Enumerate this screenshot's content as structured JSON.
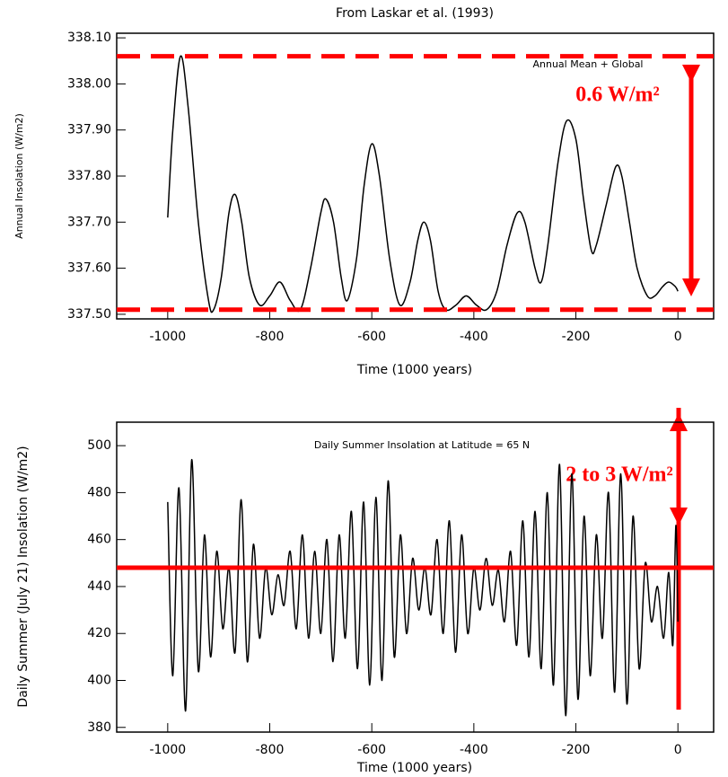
{
  "chart_data": [
    {
      "type": "line",
      "title": "From Laskar et al. (1993)",
      "x_label": "Time (1000 years)",
      "y_label": "Annual Insolation (W/m2)",
      "annotations": [
        "Annual Mean + Global",
        "0.6 W/m²"
      ],
      "x": [
        -1000,
        -990,
        -975,
        -960,
        -940,
        -920,
        -910,
        -895,
        -880,
        -868,
        -855,
        -840,
        -820,
        -800,
        -780,
        -760,
        -740,
        -720,
        -700,
        -690,
        -675,
        -660,
        -648,
        -630,
        -615,
        -600,
        -585,
        -565,
        -545,
        -525,
        -510,
        -498,
        -485,
        -470,
        -455,
        -435,
        -415,
        -395,
        -375,
        -355,
        -335,
        -315,
        -300,
        -280,
        -268,
        -255,
        -235,
        -218,
        -200,
        -185,
        -170,
        -160,
        -140,
        -122,
        -110,
        -95,
        -80,
        -60,
        -45,
        -30,
        -18,
        -5,
        0
      ],
      "series": [
        {
          "color": "#000000",
          "values": [
            337.71,
            337.9,
            338.06,
            337.95,
            337.7,
            337.53,
            337.51,
            337.58,
            337.72,
            337.76,
            337.7,
            337.58,
            337.52,
            337.54,
            337.57,
            337.53,
            337.51,
            337.6,
            337.72,
            337.75,
            337.7,
            337.58,
            337.53,
            337.62,
            337.78,
            337.87,
            337.8,
            337.62,
            337.52,
            337.57,
            337.66,
            337.7,
            337.66,
            337.55,
            337.51,
            337.52,
            337.54,
            337.52,
            337.51,
            337.55,
            337.65,
            337.72,
            337.7,
            337.6,
            337.57,
            337.65,
            337.83,
            337.92,
            337.88,
            337.75,
            337.64,
            337.65,
            337.74,
            337.82,
            337.8,
            337.7,
            337.6,
            337.54,
            337.54,
            337.56,
            337.57,
            337.56,
            337.55
          ]
        }
      ],
      "reference_lines": [
        {
          "value": 338.06,
          "style": "dashed",
          "color": "#ff0000"
        },
        {
          "value": 337.51,
          "style": "dashed",
          "color": "#ff0000"
        }
      ],
      "xlim": [
        -1100,
        70
      ],
      "xticks": [
        -1000,
        -800,
        -600,
        -400,
        -200,
        0
      ],
      "ylim": [
        337.49,
        338.11
      ],
      "yticks": [
        {
          "value": 337.5,
          "label": "337.50"
        },
        {
          "value": 337.6,
          "label": "337.60"
        },
        {
          "value": 337.7,
          "label": "337.70"
        },
        {
          "value": 337.8,
          "label": "337.80"
        },
        {
          "value": 337.9,
          "label": "337.90"
        },
        {
          "value": 338.0,
          "label": "338.00"
        },
        {
          "value": 338.1,
          "label": "338.10"
        }
      ]
    },
    {
      "type": "line",
      "x_label": "Time (1000 years)",
      "y_label": "Daily Summer (July 21) Insolation (W/m2)",
      "annotations": [
        "Daily Summer Insolation at Latitude = 65 N",
        "2 to 3 W/m²"
      ],
      "x": [
        -1000,
        -990,
        -978,
        -965,
        -953,
        -940,
        -928,
        -916,
        -904,
        -892,
        -880,
        -868,
        -856,
        -844,
        -832,
        -820,
        -808,
        -796,
        -784,
        -772,
        -760,
        -748,
        -736,
        -724,
        -712,
        -700,
        -688,
        -676,
        -664,
        -652,
        -640,
        -628,
        -616,
        -604,
        -592,
        -580,
        -568,
        -556,
        -544,
        -532,
        -520,
        -508,
        -496,
        -484,
        -472,
        -460,
        -448,
        -436,
        -424,
        -412,
        -400,
        -388,
        -376,
        -364,
        -352,
        -340,
        -328,
        -316,
        -304,
        -292,
        -280,
        -268,
        -256,
        -244,
        -232,
        -220,
        -208,
        -196,
        -184,
        -172,
        -160,
        -148,
        -136,
        -124,
        -112,
        -100,
        -88,
        -76,
        -64,
        -52,
        -40,
        -28,
        -18,
        -10,
        -4,
        0
      ],
      "series": [
        {
          "color": "#000000",
          "values": [
            476,
            402,
            482,
            387,
            494,
            404,
            462,
            410,
            455,
            422,
            448,
            412,
            477,
            408,
            458,
            418,
            448,
            428,
            445,
            432,
            455,
            422,
            462,
            418,
            455,
            420,
            460,
            408,
            462,
            418,
            472,
            405,
            476,
            398,
            478,
            400,
            485,
            410,
            462,
            420,
            452,
            430,
            448,
            428,
            460,
            420,
            468,
            412,
            462,
            420,
            448,
            430,
            452,
            432,
            447,
            425,
            455,
            415,
            468,
            410,
            472,
            405,
            480,
            398,
            492,
            385,
            488,
            392,
            470,
            402,
            462,
            418,
            480,
            395,
            488,
            390,
            470,
            405,
            450,
            425,
            440,
            418,
            446,
            415,
            466,
            425
          ]
        }
      ],
      "reference_lines": [
        {
          "value": 448,
          "style": "solid",
          "color": "#ff0000"
        }
      ],
      "xlim": [
        -1100,
        70
      ],
      "xticks": [
        -1000,
        -800,
        -600,
        -400,
        -200,
        0
      ],
      "ylim": [
        378,
        510
      ],
      "yticks": [
        380,
        400,
        420,
        440,
        460,
        480,
        500
      ]
    }
  ]
}
